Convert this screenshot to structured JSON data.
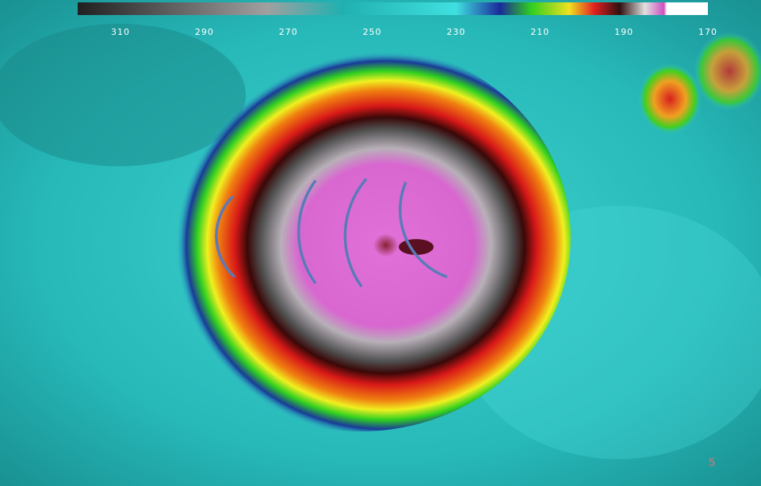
{
  "colorbar": {
    "ticks": [
      310,
      290,
      270,
      250,
      230,
      210,
      190,
      170
    ]
  },
  "frame_label": "5"
}
